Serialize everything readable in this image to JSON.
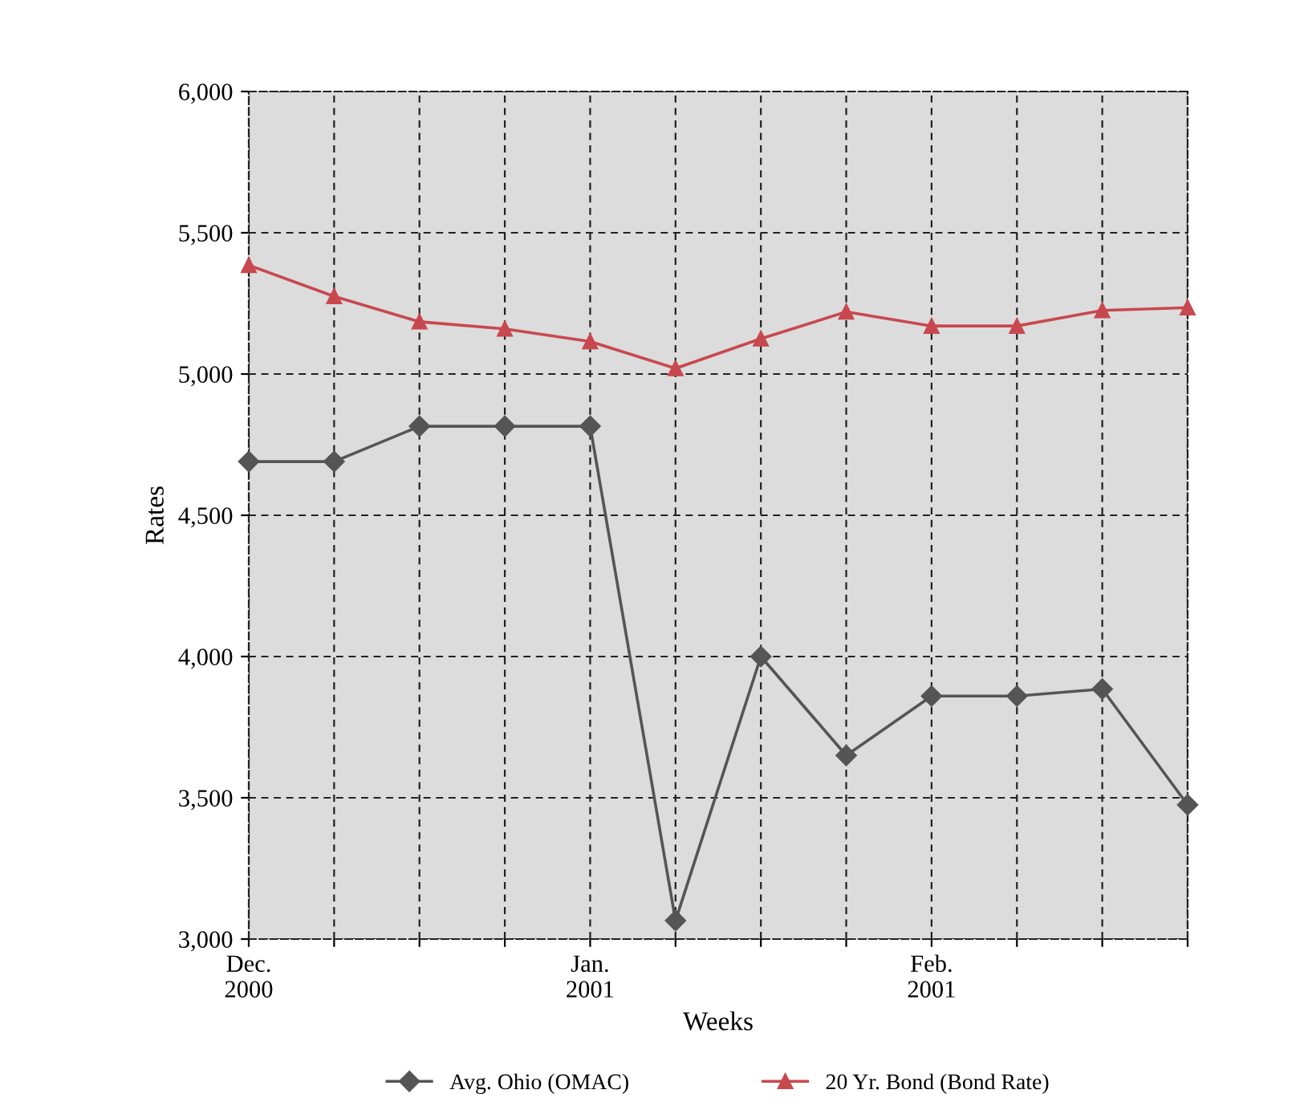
{
  "chart_data": {
    "type": "line",
    "xlabel": "Weeks",
    "ylabel": "Rates",
    "categories": [
      "Dec.\n2000",
      null,
      null,
      null,
      "Jan.\n2001",
      null,
      null,
      null,
      "Feb.\n2001",
      null,
      null,
      null
    ],
    "series": [
      {
        "name": "Avg. Ohio (OMAC)",
        "color": "#555555",
        "marker": "diamond",
        "values": [
          4690,
          4690,
          4815,
          4815,
          4815,
          3065,
          4000,
          3650,
          3860,
          3860,
          3885,
          3475
        ]
      },
      {
        "name": "20 Yr. Bond (Bond Rate)",
        "color": "#c8484f",
        "marker": "triangle",
        "values": [
          5385,
          5275,
          5185,
          5160,
          5115,
          5020,
          5125,
          5220,
          5170,
          5170,
          5225,
          5235
        ]
      }
    ],
    "ylim": [
      3000,
      6000
    ],
    "yticks": [
      {
        "value": 3000,
        "label": "3,000"
      },
      {
        "value": 3500,
        "label": "3,500"
      },
      {
        "value": 4000,
        "label": "4,000"
      },
      {
        "value": 4500,
        "label": "4,500"
      },
      {
        "value": 5000,
        "label": "5,000"
      },
      {
        "value": 5500,
        "label": "5,500"
      },
      {
        "value": 6000,
        "label": "6,000"
      }
    ],
    "grid": true,
    "legend": "bottom",
    "line_style": "solid"
  }
}
